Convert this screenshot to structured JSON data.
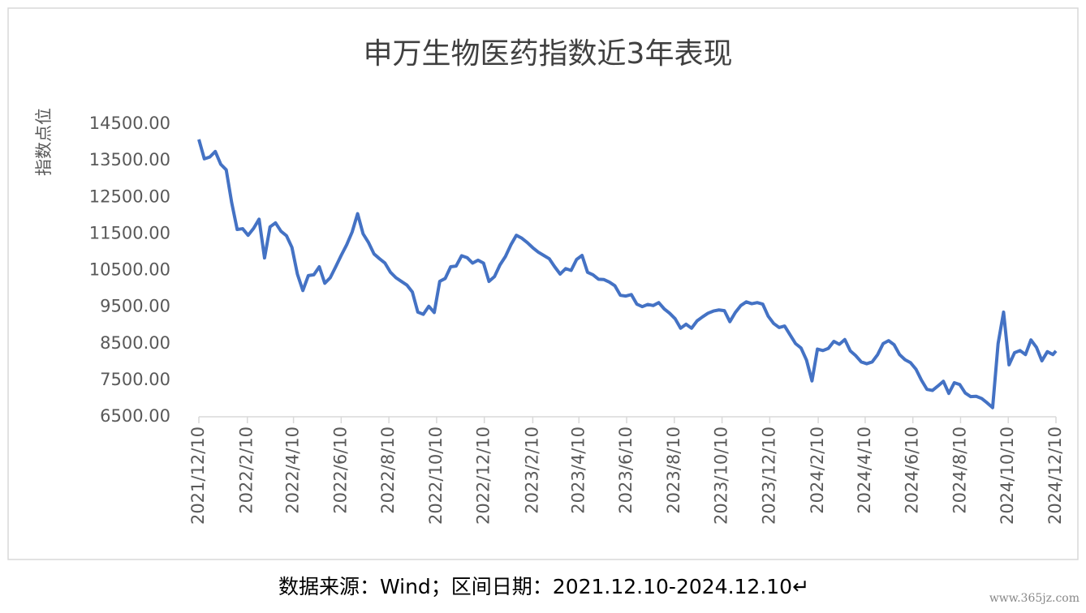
{
  "chart_data": {
    "type": "line",
    "title": "申万生物医药指数近3年表现",
    "y_label": "指数点位",
    "caption": "数据来源：Wind；区间日期：2021.12.10-2024.12.10↵",
    "watermark": "www.365jz.com",
    "ylim": [
      6500,
      14500
    ],
    "yticks": [
      {
        "value": 6500,
        "label": "6500.00"
      },
      {
        "value": 7500,
        "label": "7500.00"
      },
      {
        "value": 8500,
        "label": "8500.00"
      },
      {
        "value": 9500,
        "label": "9500.00"
      },
      {
        "value": 10500,
        "label": "10500.00"
      },
      {
        "value": 11500,
        "label": "11500.00"
      },
      {
        "value": 12500,
        "label": "12500.00"
      },
      {
        "value": 13500,
        "label": "13500.00"
      },
      {
        "value": 14500,
        "label": "14500.00"
      }
    ],
    "xlim": [
      "2021/12/10",
      "2024/12/10"
    ],
    "xticks": [
      "2021/12/10",
      "2022/2/10",
      "2022/4/10",
      "2022/6/10",
      "2022/8/10",
      "2022/10/10",
      "2022/12/10",
      "2023/2/10",
      "2023/4/10",
      "2023/6/10",
      "2023/8/10",
      "2023/10/10",
      "2023/12/10",
      "2024/2/10",
      "2024/4/10",
      "2024/6/10",
      "2024/8/10",
      "2024/10/10",
      "2024/12/10"
    ],
    "x": [
      "2021/12/10",
      "2021/12/17",
      "2021/12/24",
      "2021/12/31",
      "2022/1/7",
      "2022/1/14",
      "2022/1/21",
      "2022/1/28",
      "2022/2/4",
      "2022/2/11",
      "2022/2/18",
      "2022/2/25",
      "2022/3/4",
      "2022/3/11",
      "2022/3/18",
      "2022/3/25",
      "2022/4/1",
      "2022/4/8",
      "2022/4/15",
      "2022/4/22",
      "2022/4/29",
      "2022/5/6",
      "2022/5/13",
      "2022/5/20",
      "2022/5/27",
      "2022/6/3",
      "2022/6/10",
      "2022/6/17",
      "2022/6/24",
      "2022/7/1",
      "2022/7/8",
      "2022/7/15",
      "2022/7/22",
      "2022/7/29",
      "2022/8/5",
      "2022/8/12",
      "2022/8/19",
      "2022/8/26",
      "2022/9/2",
      "2022/9/9",
      "2022/9/16",
      "2022/9/23",
      "2022/9/30",
      "2022/10/7",
      "2022/10/14",
      "2022/10/21",
      "2022/10/28",
      "2022/11/4",
      "2022/11/11",
      "2022/11/18",
      "2022/11/25",
      "2022/12/2",
      "2022/12/9",
      "2022/12/16",
      "2022/12/23",
      "2022/12/30",
      "2023/1/6",
      "2023/1/13",
      "2023/1/20",
      "2023/1/27",
      "2023/2/3",
      "2023/2/10",
      "2023/2/17",
      "2023/2/24",
      "2023/3/3",
      "2023/3/10",
      "2023/3/17",
      "2023/3/24",
      "2023/3/31",
      "2023/4/7",
      "2023/4/14",
      "2023/4/21",
      "2023/4/28",
      "2023/5/5",
      "2023/5/12",
      "2023/5/19",
      "2023/5/26",
      "2023/6/2",
      "2023/6/9",
      "2023/6/16",
      "2023/6/23",
      "2023/6/30",
      "2023/7/7",
      "2023/7/14",
      "2023/7/21",
      "2023/7/28",
      "2023/8/4",
      "2023/8/11",
      "2023/8/18",
      "2023/8/25",
      "2023/9/1",
      "2023/9/8",
      "2023/9/15",
      "2023/9/22",
      "2023/9/29",
      "2023/10/6",
      "2023/10/13",
      "2023/10/20",
      "2023/10/27",
      "2023/11/3",
      "2023/11/10",
      "2023/11/17",
      "2023/11/24",
      "2023/12/1",
      "2023/12/8",
      "2023/12/15",
      "2023/12/22",
      "2023/12/29",
      "2024/1/5",
      "2024/1/12",
      "2024/1/19",
      "2024/1/26",
      "2024/2/2",
      "2024/2/9",
      "2024/2/16",
      "2024/2/23",
      "2024/3/1",
      "2024/3/8",
      "2024/3/15",
      "2024/3/22",
      "2024/3/29",
      "2024/4/5",
      "2024/4/12",
      "2024/4/19",
      "2024/4/26",
      "2024/5/3",
      "2024/5/10",
      "2024/5/17",
      "2024/5/24",
      "2024/5/31",
      "2024/6/7",
      "2024/6/14",
      "2024/6/21",
      "2024/6/28",
      "2024/7/5",
      "2024/7/12",
      "2024/7/19",
      "2024/7/26",
      "2024/8/2",
      "2024/8/9",
      "2024/8/16",
      "2024/8/23",
      "2024/8/30",
      "2024/9/6",
      "2024/9/13",
      "2024/9/20",
      "2024/9/27",
      "2024/10/4",
      "2024/10/11",
      "2024/10/18",
      "2024/10/25",
      "2024/11/1",
      "2024/11/8",
      "2024/11/15",
      "2024/11/22",
      "2024/11/29",
      "2024/12/6",
      "2024/12/10"
    ],
    "series": [
      {
        "name": "申万生物医药指数",
        "color": "#4472c4",
        "values": [
          14080,
          13550,
          13600,
          13750,
          13400,
          13250,
          12350,
          11620,
          11640,
          11460,
          11650,
          11900,
          10840,
          11690,
          11800,
          11570,
          11450,
          11130,
          10400,
          9950,
          10360,
          10380,
          10600,
          10150,
          10300,
          10600,
          10910,
          11200,
          11550,
          12050,
          11500,
          11260,
          10950,
          10820,
          10700,
          10450,
          10300,
          10200,
          10100,
          9910,
          9360,
          9300,
          9520,
          9350,
          10200,
          10280,
          10600,
          10620,
          10900,
          10850,
          10700,
          10780,
          10700,
          10200,
          10330,
          10650,
          10880,
          11200,
          11460,
          11380,
          11260,
          11120,
          11000,
          10910,
          10820,
          10600,
          10400,
          10550,
          10500,
          10800,
          10910,
          10450,
          10380,
          10260,
          10250,
          10180,
          10080,
          9820,
          9800,
          9840,
          9580,
          9510,
          9570,
          9540,
          9620,
          9450,
          9330,
          9180,
          8920,
          9030,
          8920,
          9120,
          9230,
          9330,
          9390,
          9420,
          9400,
          9100,
          9350,
          9540,
          9640,
          9590,
          9620,
          9580,
          9250,
          9050,
          8940,
          8980,
          8740,
          8500,
          8380,
          8050,
          7480,
          8350,
          8310,
          8370,
          8560,
          8480,
          8610,
          8300,
          8170,
          8000,
          7950,
          8000,
          8200,
          8500,
          8580,
          8470,
          8200,
          8060,
          7980,
          7800,
          7500,
          7250,
          7220,
          7340,
          7470,
          7140,
          7430,
          7380,
          7150,
          7050,
          7060,
          7000,
          6880,
          6750,
          8500,
          9360,
          7920,
          8250,
          8310,
          8200,
          8600,
          8400,
          8030,
          8280,
          8200,
          8300
        ]
      }
    ]
  }
}
